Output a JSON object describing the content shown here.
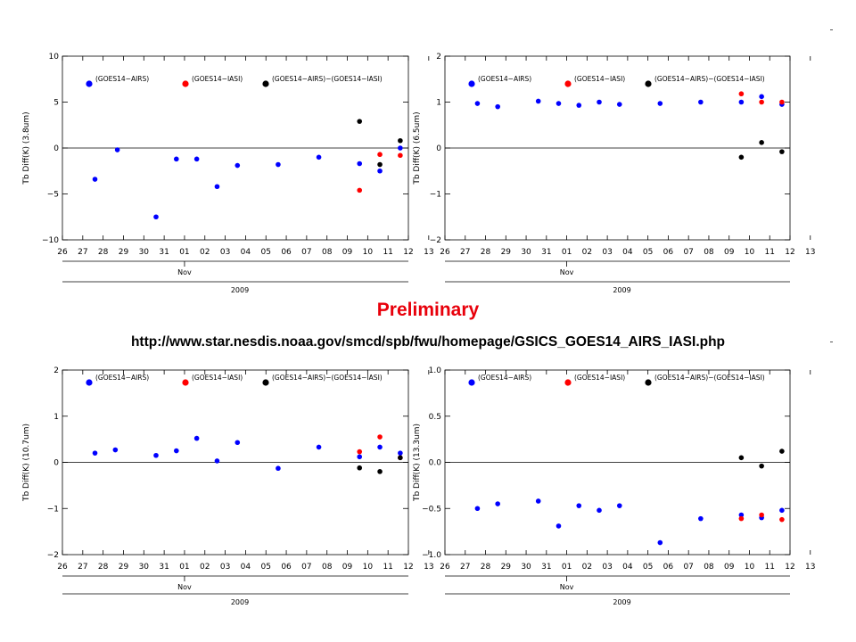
{
  "overlay": {
    "title": "Preliminary",
    "url": "http://www.star.nesdis.noaa.gov/smcd/spb/fwu/homepage/GSICS_GOES14_AIRS_IASI.php"
  },
  "colors": {
    "airs": "#0000ff",
    "iasi": "#ff0000",
    "double_diff": "#000000",
    "title": "#e8000b"
  },
  "chart_data": [
    {
      "type": "scatter",
      "ylabel": "Tb Diff(K) (3.8um)",
      "xlabel": "Nov",
      "xlabel2": "2009",
      "x_ticks": [
        "26",
        "27",
        "28",
        "29",
        "30",
        "31",
        "01",
        "02",
        "03",
        "04",
        "05",
        "06",
        "07",
        "08",
        "09",
        "10",
        "11",
        "12",
        "13"
      ],
      "ylim": [
        -10,
        10
      ],
      "y_ticks": [
        -10,
        -5,
        0,
        5,
        10
      ],
      "y_tick_labels": [
        "−10",
        "−5",
        "0",
        "5",
        "10"
      ],
      "legend": [
        "(GOES14−AIRS)",
        "(GOES14−IASI)",
        "(GOES14−AIRS)−(GOES14−IASI)"
      ],
      "series": [
        {
          "name": "(GOES14−AIRS)",
          "color": "#0000ff",
          "points": [
            [
              27.6,
              -3.4
            ],
            [
              28.7,
              -0.2
            ],
            [
              30.6,
              -7.5
            ],
            [
              31.6,
              -1.2
            ],
            [
              32.6,
              -1.2
            ],
            [
              33.6,
              -4.2
            ],
            [
              34.6,
              -1.9
            ],
            [
              36.6,
              -1.8
            ],
            [
              38.6,
              -1.0
            ],
            [
              40.6,
              -1.7
            ],
            [
              41.6,
              -2.5
            ],
            [
              42.6,
              0.0
            ]
          ]
        },
        {
          "name": "(GOES14−IASI)",
          "color": "#ff0000",
          "points": [
            [
              40.6,
              -4.6
            ],
            [
              41.6,
              -0.7
            ],
            [
              42.6,
              -0.8
            ]
          ]
        },
        {
          "name": "(GOES14−AIRS)−(GOES14−IASI)",
          "color": "#000000",
          "points": [
            [
              40.6,
              2.9
            ],
            [
              41.6,
              -1.8
            ],
            [
              42.6,
              0.8
            ]
          ]
        }
      ]
    },
    {
      "type": "scatter",
      "ylabel": "Tb Diff(K) (6.5um)",
      "xlabel": "Nov",
      "xlabel2": "2009",
      "x_ticks": [
        "26",
        "27",
        "28",
        "29",
        "30",
        "31",
        "01",
        "02",
        "03",
        "04",
        "05",
        "06",
        "07",
        "08",
        "09",
        "10",
        "11",
        "12",
        "13"
      ],
      "ylim": [
        -2,
        2
      ],
      "y_ticks": [
        -2,
        -1,
        0,
        1,
        2
      ],
      "y_tick_labels": [
        "−2",
        "−1",
        "0",
        "1",
        "2"
      ],
      "legend": [
        "(GOES14−AIRS)",
        "(GOES14−IASI)",
        "(GOES14−AIRS)−(GOES14−IASI)"
      ],
      "series": [
        {
          "name": "(GOES14−AIRS)",
          "color": "#0000ff",
          "points": [
            [
              27.6,
              0.97
            ],
            [
              28.6,
              0.9
            ],
            [
              30.6,
              1.02
            ],
            [
              31.6,
              0.97
            ],
            [
              32.6,
              0.93
            ],
            [
              33.6,
              1.0
            ],
            [
              34.6,
              0.95
            ],
            [
              36.6,
              0.97
            ],
            [
              38.6,
              1.0
            ],
            [
              40.6,
              1.0
            ],
            [
              41.6,
              1.12
            ],
            [
              42.6,
              0.95
            ]
          ]
        },
        {
          "name": "(GOES14−IASI)",
          "color": "#ff0000",
          "points": [
            [
              40.6,
              1.18
            ],
            [
              41.6,
              1.0
            ],
            [
              42.6,
              1.0
            ]
          ]
        },
        {
          "name": "(GOES14−AIRS)−(GOES14−IASI)",
          "color": "#000000",
          "points": [
            [
              40.6,
              -0.2
            ],
            [
              41.6,
              0.12
            ],
            [
              42.6,
              -0.08
            ]
          ]
        }
      ]
    },
    {
      "type": "scatter",
      "ylabel": "Tb Diff(K) (10.7um)",
      "xlabel": "Nov",
      "xlabel2": "2009",
      "x_ticks": [
        "26",
        "27",
        "28",
        "29",
        "30",
        "31",
        "01",
        "02",
        "03",
        "04",
        "05",
        "06",
        "07",
        "08",
        "09",
        "10",
        "11",
        "12",
        "13"
      ],
      "ylim": [
        -2,
        2
      ],
      "y_ticks": [
        -2,
        -1,
        0,
        1,
        2
      ],
      "y_tick_labels": [
        "−2",
        "−1",
        "0",
        "1",
        "2"
      ],
      "legend": [
        "(GOES14−AIRS)",
        "(GOES14−IASI)",
        "(GOES14−AIRS)−(GOES14−IASI)"
      ],
      "series": [
        {
          "name": "(GOES14−AIRS)",
          "color": "#0000ff",
          "points": [
            [
              27.6,
              0.2
            ],
            [
              28.6,
              0.27
            ],
            [
              30.6,
              0.15
            ],
            [
              31.6,
              0.25
            ],
            [
              32.6,
              0.52
            ],
            [
              33.6,
              0.03
            ],
            [
              34.6,
              0.43
            ],
            [
              36.6,
              -0.13
            ],
            [
              38.6,
              0.33
            ],
            [
              40.6,
              0.12
            ],
            [
              41.6,
              0.33
            ],
            [
              42.6,
              0.2
            ]
          ]
        },
        {
          "name": "(GOES14−IASI)",
          "color": "#ff0000",
          "points": [
            [
              40.6,
              0.23
            ],
            [
              41.6,
              0.55
            ],
            [
              42.6,
              0.1
            ]
          ]
        },
        {
          "name": "(GOES14−AIRS)−(GOES14−IASI)",
          "color": "#000000",
          "points": [
            [
              40.6,
              -0.12
            ],
            [
              41.6,
              -0.2
            ],
            [
              42.6,
              0.1
            ]
          ]
        }
      ]
    },
    {
      "type": "scatter",
      "ylabel": "Tb Diff(K) (13.3um)",
      "xlabel": "Nov",
      "xlabel2": "2009",
      "x_ticks": [
        "26",
        "27",
        "28",
        "29",
        "30",
        "31",
        "01",
        "02",
        "03",
        "04",
        "05",
        "06",
        "07",
        "08",
        "09",
        "10",
        "11",
        "12",
        "13"
      ],
      "ylim": [
        -1.0,
        1.0
      ],
      "y_ticks": [
        -1.0,
        -0.5,
        0.0,
        0.5,
        1.0
      ],
      "y_tick_labels": [
        "−1.0",
        "−0.5",
        "0.0",
        "0.5",
        "1.0"
      ],
      "legend": [
        "(GOES14−AIRS)",
        "(GOES14−IASI)",
        "(GOES14−AIRS)−(GOES14−IASI)"
      ],
      "series": [
        {
          "name": "(GOES14−AIRS)",
          "color": "#0000ff",
          "points": [
            [
              27.6,
              -0.5
            ],
            [
              28.6,
              -0.45
            ],
            [
              30.6,
              -0.42
            ],
            [
              31.6,
              -0.69
            ],
            [
              32.6,
              -0.47
            ],
            [
              33.6,
              -0.52
            ],
            [
              34.6,
              -0.47
            ],
            [
              36.6,
              -0.87
            ],
            [
              38.6,
              -0.61
            ],
            [
              40.6,
              -0.57
            ],
            [
              41.6,
              -0.6
            ],
            [
              42.6,
              -0.52
            ]
          ]
        },
        {
          "name": "(GOES14−IASI)",
          "color": "#ff0000",
          "points": [
            [
              40.6,
              -0.61
            ],
            [
              41.6,
              -0.57
            ],
            [
              42.6,
              -0.62
            ]
          ]
        },
        {
          "name": "(GOES14−AIRS)−(GOES14−IASI)",
          "color": "#000000",
          "points": [
            [
              40.6,
              0.05
            ],
            [
              41.6,
              -0.04
            ],
            [
              42.6,
              0.12
            ]
          ]
        }
      ]
    }
  ]
}
